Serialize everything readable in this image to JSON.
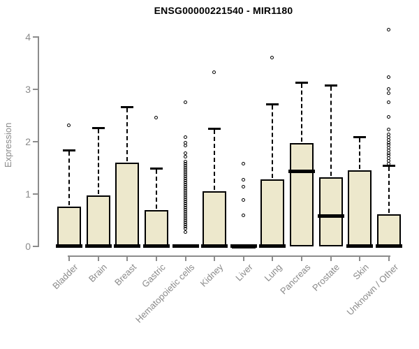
{
  "header": {
    "title": "ENSG00000221540 - MIR1180"
  },
  "chart_data": {
    "type": "boxplot",
    "title": "ENSG00000221540 - MIR1180",
    "xlabel": "",
    "ylabel": "Expression",
    "ylim": [
      0,
      4
    ],
    "yticks": [
      0,
      1,
      2,
      3,
      4
    ],
    "grid": false,
    "legend": "none",
    "categories": [
      "Bladder",
      "Brain",
      "Breast",
      "Gastric",
      "Hematopoietic cells",
      "Kidney",
      "Liver",
      "Lung",
      "Pancreas",
      "Prostate",
      "Skin",
      "Unknown / Other"
    ],
    "boxes": [
      {
        "category": "Bladder",
        "whisker_low": 0,
        "q1": 0,
        "median": 0.02,
        "q3": 0.76,
        "whisker_high": 1.84,
        "outliers": [
          2.31
        ]
      },
      {
        "category": "Brain",
        "whisker_low": 0,
        "q1": 0,
        "median": 0.02,
        "q3": 0.97,
        "whisker_high": 2.27,
        "outliers": []
      },
      {
        "category": "Breast",
        "whisker_low": 0,
        "q1": 0,
        "median": 0.02,
        "q3": 1.6,
        "whisker_high": 2.67,
        "outliers": []
      },
      {
        "category": "Gastric",
        "whisker_low": 0,
        "q1": 0,
        "median": 0.02,
        "q3": 0.7,
        "whisker_high": 1.49,
        "outliers": [
          2.45
        ]
      },
      {
        "category": "Hematopoietic cells",
        "whisker_low": 0,
        "q1": 0,
        "median": 0.02,
        "q3": 0.03,
        "whisker_high": 0.04,
        "outliers": [
          2.75,
          2.08,
          1.97,
          1.92,
          1.77,
          1.71,
          1.62,
          1.58,
          1.54,
          1.5,
          1.46,
          1.42,
          1.38,
          1.34,
          1.3,
          1.26,
          1.22,
          1.18,
          1.14,
          1.1,
          1.06,
          1.02,
          0.98,
          0.94,
          0.9,
          0.86,
          0.82,
          0.78,
          0.74,
          0.7,
          0.66,
          0.62,
          0.58,
          0.54,
          0.5,
          0.46,
          0.42,
          0.38,
          0.33,
          0.27
        ]
      },
      {
        "category": "Kidney",
        "whisker_low": 0,
        "q1": 0,
        "median": 0.02,
        "q3": 1.05,
        "whisker_high": 2.25,
        "outliers": [
          3.32
        ]
      },
      {
        "category": "Liver",
        "whisker_low": 0,
        "q1": 0,
        "median": 0.01,
        "q3": 0.02,
        "whisker_high": 0.03,
        "outliers": [
          1.57,
          1.27,
          1.13,
          0.88,
          0.59
        ]
      },
      {
        "category": "Lung",
        "whisker_low": 0,
        "q1": 0,
        "median": 0.02,
        "q3": 1.28,
        "whisker_high": 2.72,
        "outliers": [
          3.6
        ]
      },
      {
        "category": "Pancreas",
        "whisker_low": 0,
        "q1": 0,
        "median": 1.44,
        "q3": 1.98,
        "whisker_high": 3.13,
        "outliers": []
      },
      {
        "category": "Prostate",
        "whisker_low": 0,
        "q1": 0,
        "median": 0.59,
        "q3": 1.32,
        "whisker_high": 3.08,
        "outliers": []
      },
      {
        "category": "Skin",
        "whisker_low": 0,
        "q1": 0,
        "median": 0.02,
        "q3": 1.46,
        "whisker_high": 2.1,
        "outliers": []
      },
      {
        "category": "Unknown / Other",
        "whisker_low": 0,
        "q1": 0,
        "median": 0.02,
        "q3": 0.62,
        "whisker_high": 1.55,
        "outliers": [
          4.13,
          3.23,
          3.0,
          2.92,
          2.75,
          2.47,
          2.23,
          2.13,
          2.08,
          2.03,
          1.98,
          1.93,
          1.88,
          1.83,
          1.78,
          1.73,
          1.68,
          1.63,
          1.58
        ]
      }
    ],
    "colors": {
      "box_fill": "#EDE8CC",
      "box_line": "#000000",
      "axis_line": "#8c8c8c",
      "tick_text": "#8a8a8a",
      "title_text": "#000000",
      "background": "#ffffff"
    }
  }
}
